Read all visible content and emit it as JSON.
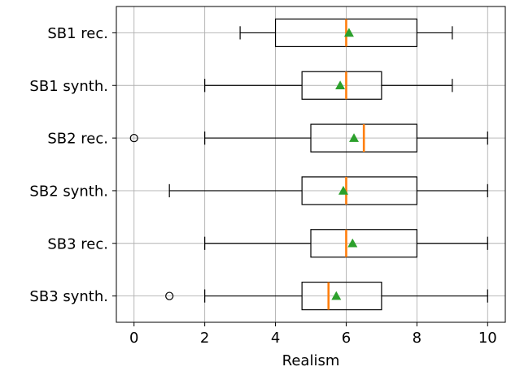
{
  "chart_data": {
    "type": "boxplot",
    "orientation": "horizontal",
    "xlabel": "Realism",
    "ylabel": "",
    "xlim": [
      -0.5,
      10.5
    ],
    "xticks": [
      0,
      2,
      4,
      6,
      8,
      10
    ],
    "grid": true,
    "colors": {
      "box": "#000000",
      "median": "#ff7f0e",
      "mean": "#2ca02c",
      "grid": "#b0b0b0"
    },
    "categories": [
      "SB1 rec.",
      "SB1 synth.",
      "SB2 rec.",
      "SB2 synth.",
      "SB3 rec.",
      "SB3 synth."
    ],
    "boxes": [
      {
        "label": "SB1 rec.",
        "whisker_low": 3,
        "q1": 4,
        "median": 6,
        "q3": 8,
        "whisker_high": 9,
        "mean": 6.08,
        "outliers": []
      },
      {
        "label": "SB1 synth.",
        "whisker_low": 2,
        "q1": 4.75,
        "median": 6,
        "q3": 7,
        "whisker_high": 9,
        "mean": 5.83,
        "outliers": []
      },
      {
        "label": "SB2 rec.",
        "whisker_low": 2,
        "q1": 5,
        "median": 6.5,
        "q3": 8,
        "whisker_high": 10,
        "mean": 6.22,
        "outliers": [
          0
        ]
      },
      {
        "label": "SB2 synth.",
        "whisker_low": 1,
        "q1": 4.75,
        "median": 6,
        "q3": 8,
        "whisker_high": 10,
        "mean": 5.92,
        "outliers": []
      },
      {
        "label": "SB3 rec.",
        "whisker_low": 2,
        "q1": 5,
        "median": 6,
        "q3": 8,
        "whisker_high": 10,
        "mean": 6.18,
        "outliers": []
      },
      {
        "label": "SB3 synth.",
        "whisker_low": 2,
        "q1": 4.75,
        "median": 5.5,
        "q3": 7,
        "whisker_high": 10,
        "mean": 5.72,
        "outliers": [
          1
        ]
      }
    ]
  }
}
